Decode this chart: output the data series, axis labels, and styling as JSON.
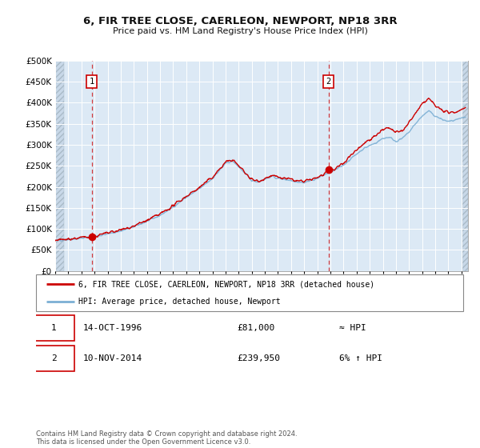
{
  "title": "6, FIR TREE CLOSE, CAERLEON, NEWPORT, NP18 3RR",
  "subtitle": "Price paid vs. HM Land Registry's House Price Index (HPI)",
  "sale1_date": "14-OCT-1996",
  "sale1_price": 81000,
  "sale1_year": 1996.79,
  "sale2_date": "10-NOV-2014",
  "sale2_price": 239950,
  "sale2_year": 2014.86,
  "hpi_label": "HPI: Average price, detached house, Newport",
  "property_label": "6, FIR TREE CLOSE, CAERLEON, NEWPORT, NP18 3RR (detached house)",
  "footer": "Contains HM Land Registry data © Crown copyright and database right 2024.\nThis data is licensed under the Open Government Licence v3.0.",
  "line_color_red": "#cc0000",
  "line_color_blue": "#7bafd4",
  "plot_bg": "#dce9f5",
  "ylim_max": 500,
  "yticks": [
    0,
    50,
    100,
    150,
    200,
    250,
    300,
    350,
    400,
    450,
    500
  ],
  "xmin": 1994.0,
  "xmax": 2025.5,
  "hpi_anchors_x": [
    1994.0,
    1995.0,
    1996.0,
    1997.0,
    1998.0,
    1999.0,
    2000.0,
    2001.0,
    2002.0,
    2003.0,
    2004.0,
    2005.0,
    2006.0,
    2007.0,
    2007.5,
    2008.0,
    2009.0,
    2009.5,
    2010.0,
    2010.5,
    2011.0,
    2011.5,
    2012.0,
    2012.5,
    2013.0,
    2013.5,
    2014.0,
    2014.5,
    2015.0,
    2015.5,
    2016.0,
    2016.5,
    2017.0,
    2017.5,
    2018.0,
    2018.5,
    2019.0,
    2019.5,
    2020.0,
    2020.5,
    2021.0,
    2021.5,
    2022.0,
    2022.5,
    2023.0,
    2023.5,
    2024.0,
    2024.5,
    2025.0,
    2025.3
  ],
  "hpi_anchors_y": [
    72,
    75,
    78,
    82,
    88,
    95,
    105,
    118,
    132,
    152,
    175,
    195,
    220,
    255,
    262,
    248,
    215,
    212,
    218,
    225,
    220,
    218,
    215,
    212,
    210,
    215,
    220,
    228,
    235,
    242,
    252,
    265,
    278,
    290,
    298,
    305,
    315,
    318,
    308,
    315,
    330,
    350,
    368,
    380,
    368,
    360,
    355,
    358,
    362,
    365
  ],
  "prop_offset": [
    0,
    1,
    1,
    0,
    2,
    2,
    2,
    2,
    3,
    3,
    3,
    3,
    3,
    3,
    3,
    2,
    2,
    2,
    2,
    2,
    2,
    2,
    2,
    2,
    2,
    2,
    2,
    2,
    2,
    3,
    5,
    8,
    10,
    12,
    15,
    18,
    20,
    22,
    20,
    18,
    22,
    25,
    28,
    30,
    25,
    22,
    20,
    20,
    22,
    23
  ]
}
